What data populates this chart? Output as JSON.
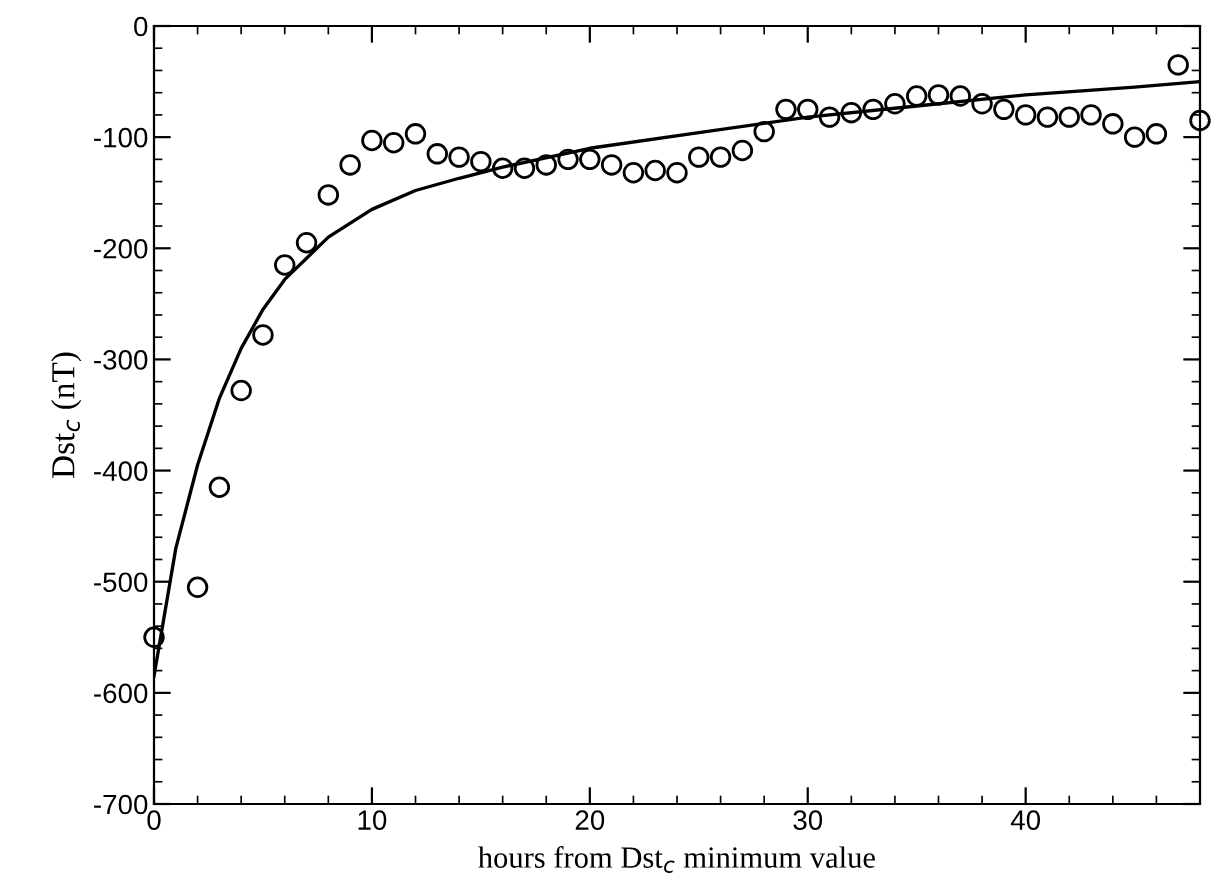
{
  "chart_data": {
    "type": "scatter",
    "xlabel": "hours from Dst$_{c}$ minimum value",
    "ylabel": "Dst$_{c}$ (nT)",
    "xlim": [
      0,
      48
    ],
    "ylim": [
      -700,
      0
    ],
    "xticks": [
      0,
      10,
      20,
      30,
      40
    ],
    "yticks": [
      -700,
      -600,
      -500,
      -400,
      -300,
      -200,
      -100,
      0
    ],
    "grid": false,
    "legend": false,
    "series": [
      {
        "color": "#000000",
        "marker": "circle",
        "x": [
          0,
          2,
          3,
          4,
          5,
          6,
          7,
          8,
          9,
          10,
          11,
          12,
          13,
          14,
          15,
          16,
          17,
          18,
          19,
          20,
          21,
          22,
          23,
          24,
          25,
          26,
          27,
          28,
          29,
          30,
          31,
          32,
          33,
          34,
          35,
          36,
          37,
          38,
          39,
          40,
          41,
          42,
          43,
          44,
          45,
          46,
          47,
          48
        ],
        "values": [
          -550,
          -505,
          -415,
          -328,
          -278,
          -215,
          -195,
          -152,
          -125,
          -103,
          -105,
          -97,
          -115,
          -118,
          -122,
          -128,
          -128,
          -125,
          -120,
          -120,
          -125,
          -132,
          -130,
          -132,
          -118,
          -118,
          -112,
          -95,
          -75,
          -75,
          -82,
          -78,
          -75,
          -70,
          -63,
          -62,
          -63,
          -70,
          -75,
          -80,
          -82,
          -82,
          -80,
          -88,
          -100,
          -97,
          -35,
          -85
        ]
      },
      {
        "type": "line",
        "color": "#000000",
        "marker": "none",
        "line_style": "solid",
        "x": [
          0,
          1,
          2,
          3,
          4,
          5,
          6,
          8,
          10,
          12,
          14,
          16,
          20,
          25,
          30,
          35,
          40,
          45,
          48
        ],
        "values": [
          -585,
          -470,
          -395,
          -335,
          -290,
          -255,
          -228,
          -190,
          -165,
          -148,
          -137,
          -127,
          -110,
          -96,
          -82,
          -72,
          -62,
          -55,
          -50
        ]
      }
    ]
  }
}
